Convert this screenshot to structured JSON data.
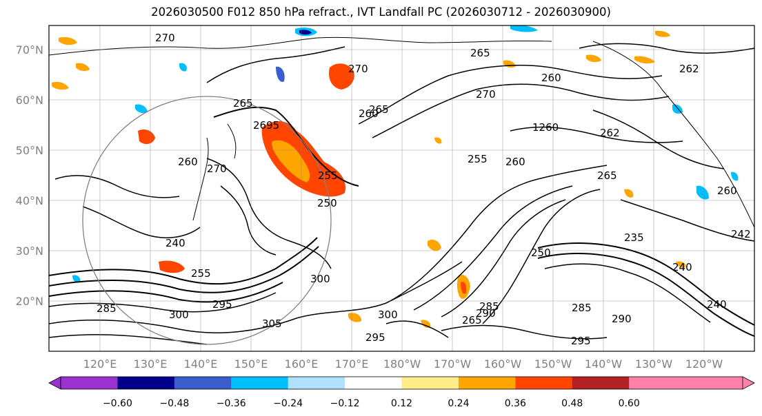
{
  "title": "2026030500 F012 850 hPa refract., IVT Landfall PC (2026030712 - 2026030900)",
  "map": {
    "lat_labels": [
      "70°N",
      "60°N",
      "50°N",
      "40°N",
      "30°N",
      "20°N"
    ],
    "lon_labels": [
      "120°E",
      "130°E",
      "140°E",
      "150°E",
      "160°E",
      "170°E",
      "180°W",
      "170°W",
      "160°W",
      "150°W",
      "140°W",
      "130°W",
      "120°W"
    ],
    "contour_labels": [
      "270",
      "265",
      "270",
      "262",
      "260",
      "270",
      "265",
      "260",
      "265",
      "2695",
      "1260",
      "255",
      "260",
      "265",
      "270",
      "255",
      "250",
      "260",
      "240",
      "255",
      "235",
      "250",
      "240",
      "240",
      "285",
      "290",
      "295",
      "285",
      "300",
      "305",
      "300",
      "295",
      "300",
      "295",
      "290",
      "285",
      "265",
      "242",
      "260",
      "262"
    ],
    "gridline_color": "#808080"
  },
  "colorbar": {
    "ticks": [
      "−0.60",
      "−0.48",
      "−0.36",
      "−0.24",
      "−0.12",
      "0.12",
      "0.24",
      "0.36",
      "0.48",
      "0.60"
    ],
    "colors": [
      "#9a32cd",
      "#00008b",
      "#3a5fcd",
      "#00bfff",
      "#b0e2ff",
      "#ffffff",
      "#ffec8b",
      "#ffa500",
      "#ff4500",
      "#b22222",
      "#ff82ab",
      "#ff82ab"
    ],
    "under_color": "#9a32cd",
    "over_color": "#ff82ab"
  }
}
